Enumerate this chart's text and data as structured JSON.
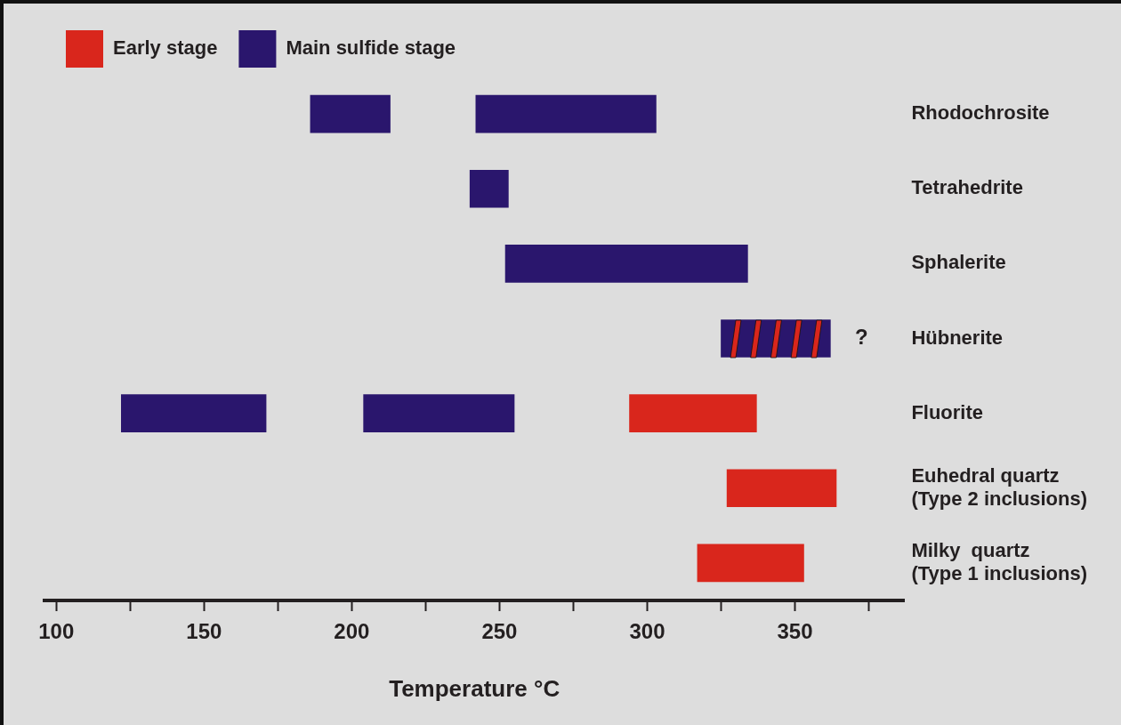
{
  "chart_data": {
    "type": "bar",
    "orientation": "horizontal",
    "xlabel": "Temperature °C",
    "categories": [
      "Rhodochrosite",
      "Tetrahedrite",
      "Sphalerite",
      "Hübnerite",
      "Fluorite",
      "Euhedral quartz\n(Type 2 inclusions)",
      "Milky  quartz\n(Type 1 inclusions)"
    ],
    "series": [
      {
        "name": "Early stage",
        "color": "#d9261c",
        "base": [
          null,
          null,
          null,
          null,
          294,
          327,
          317
        ],
        "values": [
          null,
          null,
          null,
          null,
          43,
          37,
          36
        ]
      },
      {
        "name": "Main sulfide stage",
        "color": "#2a166d",
        "base": [
          186,
          240,
          252,
          325,
          122,
          null,
          null
        ],
        "values": [
          27,
          13,
          82,
          37,
          49,
          null,
          null
        ]
      },
      {
        "color": "#2a166d",
        "base": [
          242,
          null,
          null,
          null,
          204,
          null,
          null
        ],
        "values": [
          61,
          null,
          null,
          null,
          51,
          null,
          null
        ]
      }
    ],
    "xlim": [
      96,
      387
    ],
    "xticks": [
      100,
      {
        "value": 125,
        "label": null
      },
      150,
      {
        "value": 175,
        "label": null
      },
      200,
      {
        "value": 225,
        "label": null
      },
      250,
      {
        "value": 275,
        "label": null
      },
      300,
      {
        "value": 325,
        "label": null
      },
      350,
      {
        "value": 375,
        "label": null
      }
    ],
    "annotations": [
      "?"
    ],
    "legend": "top left",
    "grid": false
  }
}
